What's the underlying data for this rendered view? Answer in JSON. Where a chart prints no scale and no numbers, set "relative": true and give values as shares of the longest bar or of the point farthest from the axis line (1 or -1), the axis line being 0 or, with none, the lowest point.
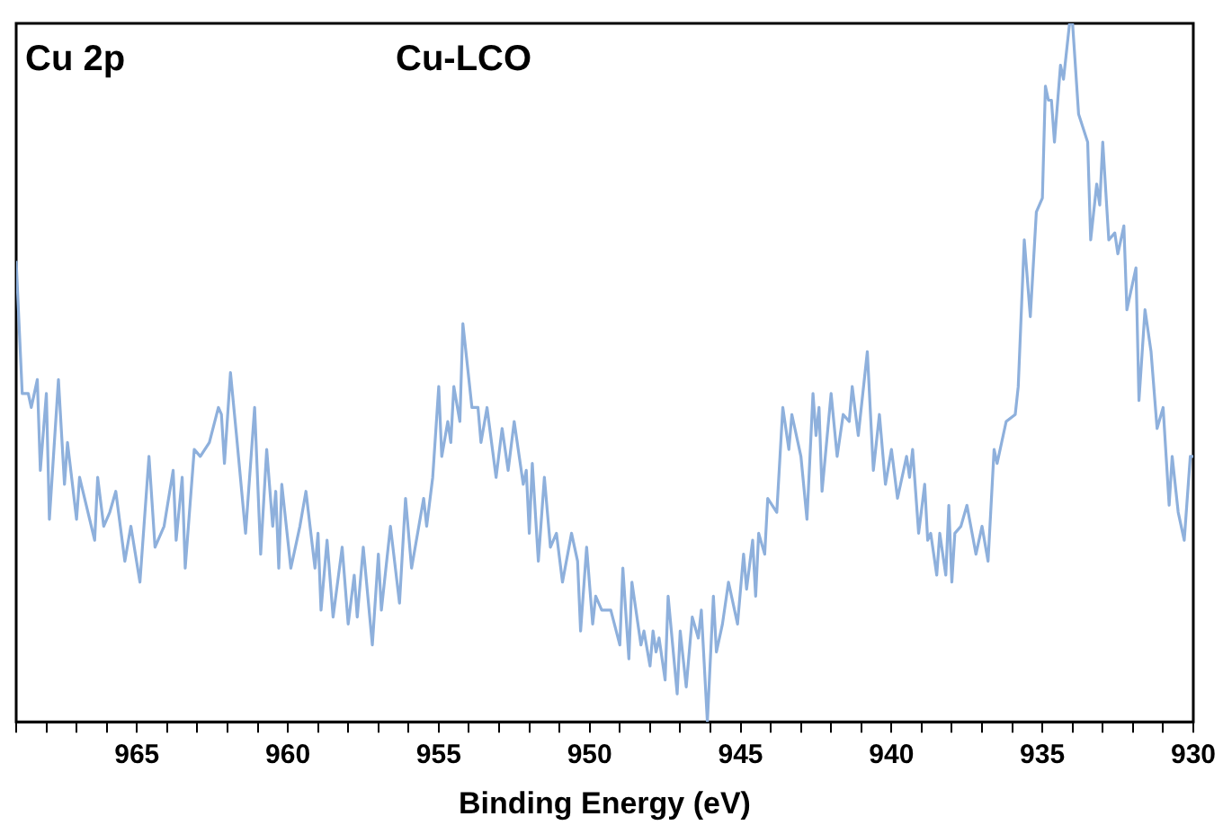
{
  "chart_data": {
    "type": "line",
    "xlabel": "Binding Energy (eV)",
    "annotations": [
      "Cu 2p",
      "Cu-LCO"
    ],
    "relative": true,
    "marker": "none",
    "grid": false,
    "legend": false,
    "xlim": [
      969,
      930
    ],
    "xticks": [
      {
        "value": 969,
        "label": null
      },
      {
        "value": 968,
        "label": null
      },
      {
        "value": 967,
        "label": null
      },
      {
        "value": 966,
        "label": null
      },
      965,
      {
        "value": 964,
        "label": null
      },
      {
        "value": 963,
        "label": null
      },
      {
        "value": 962,
        "label": null
      },
      {
        "value": 961,
        "label": null
      },
      960,
      {
        "value": 959,
        "label": null
      },
      {
        "value": 958,
        "label": null
      },
      {
        "value": 957,
        "label": null
      },
      {
        "value": 956,
        "label": null
      },
      955,
      {
        "value": 954,
        "label": null
      },
      {
        "value": 953,
        "label": null
      },
      {
        "value": 952,
        "label": null
      },
      {
        "value": 951,
        "label": null
      },
      950,
      {
        "value": 949,
        "label": null
      },
      {
        "value": 948,
        "label": null
      },
      {
        "value": 947,
        "label": null
      },
      {
        "value": 946,
        "label": null
      },
      945,
      {
        "value": 944,
        "label": null
      },
      {
        "value": 943,
        "label": null
      },
      {
        "value": 942,
        "label": null
      },
      {
        "value": 941,
        "label": null
      },
      940,
      {
        "value": 939,
        "label": null
      },
      {
        "value": 938,
        "label": null
      },
      {
        "value": 937,
        "label": null
      },
      {
        "value": 936,
        "label": null
      },
      935,
      {
        "value": 934,
        "label": null
      },
      {
        "value": 933,
        "label": null
      },
      {
        "value": 932,
        "label": null
      },
      {
        "value": 931,
        "label": null
      },
      930
    ],
    "series": [
      {
        "color": "#8eb0dc",
        "x": [
          969.0,
          968.8,
          968.6,
          968.5,
          968.3,
          968.2,
          968.0,
          967.9,
          967.6,
          967.4,
          967.3,
          967.0,
          966.9,
          966.4,
          966.3,
          966.1,
          965.9,
          965.7,
          965.4,
          965.2,
          964.9,
          964.6,
          964.4,
          964.1,
          963.8,
          963.7,
          963.5,
          963.4,
          963.1,
          962.9,
          962.6,
          962.3,
          962.2,
          962.1,
          961.9,
          961.7,
          961.4,
          961.1,
          960.9,
          960.7,
          960.5,
          960.4,
          960.3,
          960.2,
          959.9,
          959.6,
          959.4,
          959.1,
          959.0,
          958.9,
          958.7,
          958.5,
          958.2,
          958.0,
          957.8,
          957.7,
          957.5,
          957.2,
          957.0,
          956.9,
          956.6,
          956.3,
          956.1,
          955.9,
          955.5,
          955.4,
          955.2,
          955.0,
          954.9,
          954.7,
          954.6,
          954.5,
          954.3,
          954.2,
          953.9,
          953.7,
          953.6,
          953.4,
          953.1,
          952.9,
          952.7,
          952.5,
          952.2,
          952.1,
          952.0,
          951.9,
          951.7,
          951.5,
          951.3,
          951.1,
          950.9,
          950.6,
          950.4,
          950.3,
          950.1,
          949.9,
          949.8,
          949.6,
          949.3,
          949.0,
          948.9,
          948.7,
          948.6,
          948.3,
          948.2,
          948.0,
          947.9,
          947.8,
          947.7,
          947.5,
          947.4,
          947.1,
          947.0,
          946.8,
          946.6,
          946.4,
          946.3,
          946.1,
          945.9,
          945.8,
          945.6,
          945.4,
          945.1,
          944.9,
          944.8,
          944.6,
          944.5,
          944.4,
          944.2,
          944.1,
          943.8,
          943.6,
          943.4,
          943.3,
          943.0,
          942.8,
          942.6,
          942.5,
          942.4,
          942.3,
          942.0,
          941.8,
          941.6,
          941.4,
          941.3,
          941.1,
          940.8,
          940.6,
          940.4,
          940.2,
          940.0,
          939.8,
          939.5,
          939.4,
          939.3,
          939.1,
          938.9,
          938.8,
          938.7,
          938.5,
          938.4,
          938.2,
          938.1,
          938.0,
          937.9,
          937.7,
          937.5,
          937.2,
          937.0,
          936.8,
          936.6,
          936.5,
          936.2,
          935.9,
          935.8,
          935.6,
          935.4,
          935.2,
          935.0,
          934.9,
          934.8,
          934.7,
          934.6,
          934.4,
          934.3,
          934.1,
          934.0,
          933.8,
          933.5,
          933.4,
          933.2,
          933.1,
          933.0,
          932.8,
          932.6,
          932.5,
          932.3,
          932.2,
          931.9,
          931.8,
          931.6,
          931.4,
          931.2,
          931.0,
          930.8,
          930.7,
          930.5,
          930.3,
          930.1,
          930.0
        ],
        "values": [
          0.66,
          0.47,
          0.47,
          0.45,
          0.49,
          0.36,
          0.47,
          0.29,
          0.49,
          0.34,
          0.4,
          0.29,
          0.35,
          0.26,
          0.35,
          0.28,
          0.3,
          0.33,
          0.23,
          0.28,
          0.2,
          0.38,
          0.25,
          0.28,
          0.36,
          0.26,
          0.35,
          0.22,
          0.39,
          0.38,
          0.4,
          0.45,
          0.44,
          0.37,
          0.5,
          0.41,
          0.27,
          0.45,
          0.24,
          0.39,
          0.28,
          0.33,
          0.22,
          0.34,
          0.22,
          0.28,
          0.33,
          0.22,
          0.27,
          0.16,
          0.26,
          0.15,
          0.25,
          0.14,
          0.21,
          0.15,
          0.25,
          0.11,
          0.24,
          0.16,
          0.28,
          0.17,
          0.32,
          0.22,
          0.32,
          0.28,
          0.35,
          0.48,
          0.38,
          0.43,
          0.4,
          0.48,
          0.43,
          0.57,
          0.45,
          0.45,
          0.4,
          0.45,
          0.35,
          0.42,
          0.36,
          0.43,
          0.34,
          0.36,
          0.27,
          0.37,
          0.23,
          0.35,
          0.25,
          0.27,
          0.2,
          0.27,
          0.23,
          0.13,
          0.25,
          0.14,
          0.18,
          0.16,
          0.16,
          0.11,
          0.22,
          0.09,
          0.2,
          0.11,
          0.13,
          0.08,
          0.13,
          0.1,
          0.12,
          0.06,
          0.18,
          0.04,
          0.13,
          0.05,
          0.15,
          0.12,
          0.16,
          0.0,
          0.18,
          0.1,
          0.14,
          0.2,
          0.14,
          0.24,
          0.19,
          0.26,
          0.18,
          0.27,
          0.24,
          0.32,
          0.3,
          0.45,
          0.39,
          0.44,
          0.38,
          0.29,
          0.47,
          0.41,
          0.45,
          0.33,
          0.47,
          0.38,
          0.44,
          0.43,
          0.48,
          0.41,
          0.53,
          0.36,
          0.44,
          0.34,
          0.39,
          0.32,
          0.38,
          0.35,
          0.39,
          0.27,
          0.34,
          0.26,
          0.27,
          0.21,
          0.27,
          0.21,
          0.31,
          0.2,
          0.27,
          0.28,
          0.31,
          0.24,
          0.28,
          0.23,
          0.39,
          0.37,
          0.43,
          0.44,
          0.48,
          0.69,
          0.58,
          0.73,
          0.75,
          0.91,
          0.89,
          0.89,
          0.83,
          0.94,
          0.92,
          1.0,
          1.0,
          0.87,
          0.83,
          0.69,
          0.77,
          0.74,
          0.83,
          0.69,
          0.7,
          0.67,
          0.71,
          0.59,
          0.65,
          0.46,
          0.59,
          0.53,
          0.42,
          0.45,
          0.31,
          0.38,
          0.3,
          0.26,
          0.38,
          0.38
        ]
      }
    ]
  }
}
